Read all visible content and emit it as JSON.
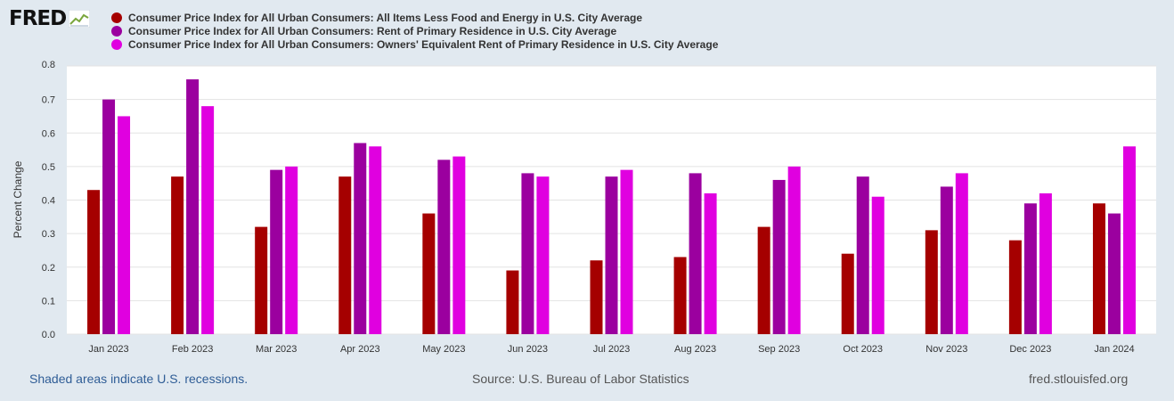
{
  "logo": {
    "text": "FRED",
    "icon": "trend-line-icon"
  },
  "legend": [
    {
      "label": "Consumer Price Index for All Urban Consumers: All Items Less Food and Energy in U.S. City Average",
      "color": "#a50000"
    },
    {
      "label": "Consumer Price Index for All Urban Consumers: Rent of Primary Residence in U.S. City Average",
      "color": "#9b009f"
    },
    {
      "label": "Consumer Price Index for All Urban Consumers: Owners' Equivalent Rent of Primary Residence in U.S. City Average",
      "color": "#e000e0"
    }
  ],
  "footer": {
    "recessions": "Shaded areas indicate U.S. recessions.",
    "source": "Source: U.S. Bureau of Labor Statistics",
    "site": "fred.stlouisfed.org"
  },
  "chart_data": {
    "type": "bar",
    "title": "",
    "xlabel": "",
    "ylabel": "Percent Change",
    "ylim": [
      0,
      0.8
    ],
    "yticks": [
      "0.0",
      "0.1",
      "0.2",
      "0.3",
      "0.4",
      "0.5",
      "0.6",
      "0.7",
      "0.8"
    ],
    "grid": true,
    "categories": [
      "Jan 2023",
      "Feb 2023",
      "Mar 2023",
      "Apr 2023",
      "May 2023",
      "Jun 2023",
      "Jul 2023",
      "Aug 2023",
      "Sep 2023",
      "Oct 2023",
      "Nov 2023",
      "Dec 2023",
      "Jan 2024"
    ],
    "series": [
      {
        "name": "Consumer Price Index for All Urban Consumers: All Items Less Food and Energy in U.S. City Average",
        "color": "#a50000",
        "values": [
          0.43,
          0.47,
          0.32,
          0.47,
          0.36,
          0.19,
          0.22,
          0.23,
          0.32,
          0.24,
          0.31,
          0.28,
          0.39
        ]
      },
      {
        "name": "Consumer Price Index for All Urban Consumers: Rent of Primary Residence in U.S. City Average",
        "color": "#9b009f",
        "values": [
          0.7,
          0.76,
          0.49,
          0.57,
          0.52,
          0.48,
          0.47,
          0.48,
          0.46,
          0.47,
          0.44,
          0.39,
          0.36
        ]
      },
      {
        "name": "Consumer Price Index for All Urban Consumers: Owners' Equivalent Rent of Primary Residence in U.S. City Average",
        "color": "#e000e0",
        "values": [
          0.65,
          0.68,
          0.5,
          0.56,
          0.53,
          0.47,
          0.49,
          0.42,
          0.5,
          0.41,
          0.48,
          0.42,
          0.56
        ]
      }
    ]
  }
}
